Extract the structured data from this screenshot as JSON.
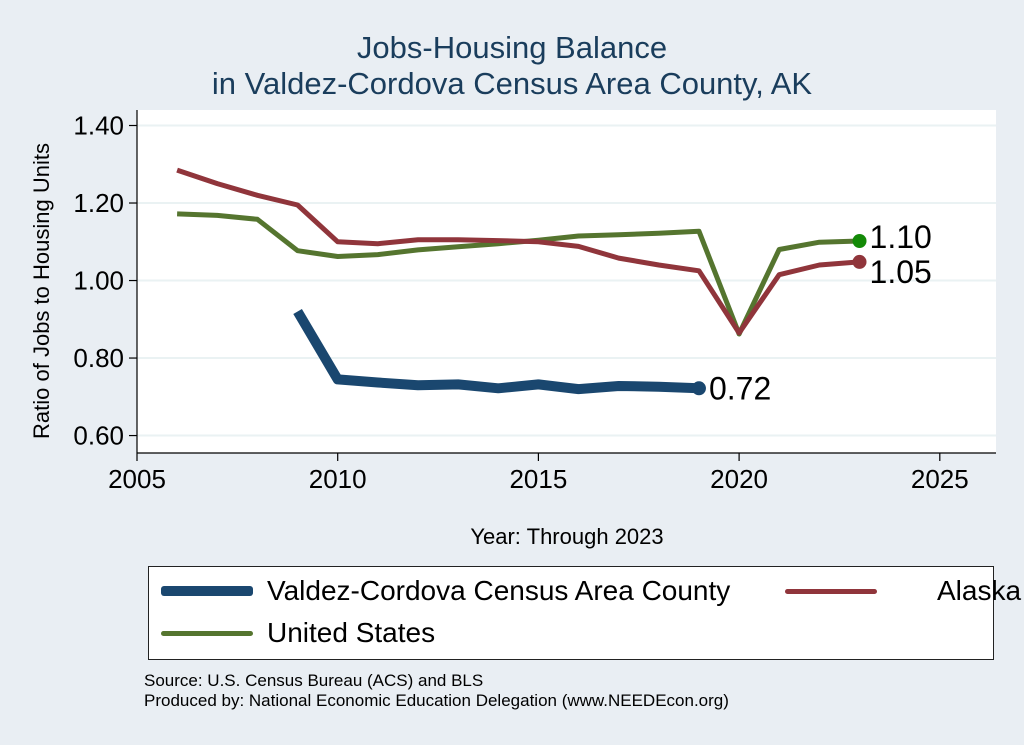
{
  "chart_data": {
    "type": "line",
    "title": "Jobs-Housing Balance",
    "subtitle": "in Valdez-Cordova Census Area County, AK",
    "xlabel": "Year: Through 2023",
    "ylabel": "Ratio of Jobs to Housing Units",
    "xlim": [
      2005,
      2026.4
    ],
    "ylim": [
      0.555,
      1.44
    ],
    "xticks": [
      2005,
      2010,
      2015,
      2020,
      2025
    ],
    "yticks": [
      0.6,
      0.8,
      1.0,
      1.2,
      1.4
    ],
    "ytick_labels": [
      "0.60",
      "0.80",
      "1.00",
      "1.20",
      "1.40"
    ],
    "grid": true,
    "legend_position": "bottom",
    "series": [
      {
        "name": "Valdez-Cordova Census Area County",
        "color": "#1a476f",
        "x": [
          2009,
          2010,
          2011,
          2012,
          2013,
          2014,
          2015,
          2016,
          2017,
          2018,
          2019
        ],
        "values": [
          0.92,
          0.745,
          0.737,
          0.73,
          0.732,
          0.722,
          0.732,
          0.72,
          0.728,
          0.726,
          0.722
        ],
        "end_label": "0.72"
      },
      {
        "name": "Alaska",
        "color": "#90353b",
        "x": [
          2006,
          2007,
          2008,
          2009,
          2010,
          2011,
          2012,
          2013,
          2014,
          2015,
          2016,
          2017,
          2018,
          2019,
          2020,
          2021,
          2022,
          2023
        ],
        "values": [
          1.285,
          1.25,
          1.22,
          1.195,
          1.1,
          1.095,
          1.105,
          1.105,
          1.103,
          1.1,
          1.088,
          1.058,
          1.04,
          1.025,
          0.865,
          1.015,
          1.04,
          1.048
        ],
        "end_label": "1.05"
      },
      {
        "name": "United States",
        "color": "#55752f",
        "end_marker_color": "#138a07",
        "x": [
          2006,
          2007,
          2008,
          2009,
          2010,
          2011,
          2012,
          2013,
          2014,
          2015,
          2016,
          2017,
          2018,
          2019,
          2020,
          2021,
          2022,
          2023
        ],
        "values": [
          1.172,
          1.168,
          1.158,
          1.077,
          1.062,
          1.067,
          1.079,
          1.087,
          1.095,
          1.104,
          1.115,
          1.118,
          1.122,
          1.127,
          0.862,
          1.08,
          1.099,
          1.102
        ],
        "end_label": "1.10"
      }
    ]
  },
  "source_lines": [
    "Source: U.S. Census Bureau (ACS) and BLS",
    "Produced by: National Economic Education Delegation (www.NEEDEcon.org)"
  ]
}
